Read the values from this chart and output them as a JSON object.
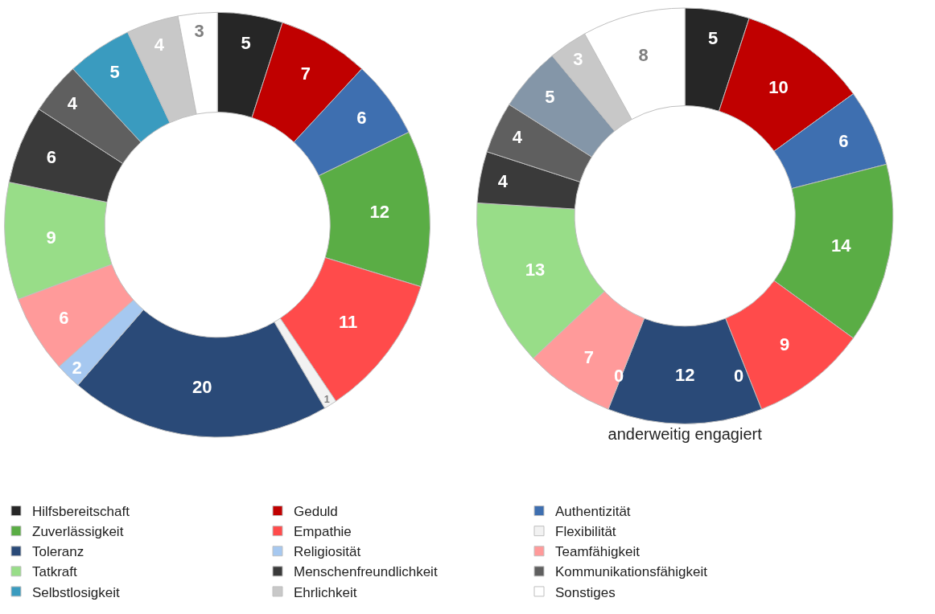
{
  "chart_data": [
    {
      "type": "donut",
      "categories": [
        "Hilfsbereitschaft",
        "Geduld",
        "Authentizität",
        "Zuverlässigkeit",
        "Empathie",
        "Flexibilität",
        "Toleranz",
        "Religiosität",
        "Teamfähigkeit",
        "Tatkraft",
        "Menschenfreundlichkeit",
        "Kommunikationsfähigkeit",
        "Selbstlosigkeit",
        "Ehrlichkeit",
        "Sonstiges"
      ],
      "values": [
        5,
        7,
        6,
        12,
        11,
        1,
        20,
        2,
        6,
        9,
        6,
        4,
        5,
        4,
        3
      ],
      "colors": [
        "#262626",
        "#c00000",
        "#3e6fb0",
        "#5aad45",
        "#ff4b4b",
        "#f2f2f2",
        "#2a4a78",
        "#a6c8f0",
        "#ff9a9a",
        "#98dd88",
        "#3a3a3a",
        "#5f5f5f",
        "#3a9bbf",
        "#c8c8c8",
        "#ffffff"
      ],
      "data_labels": true,
      "legend": "bottom"
    },
    {
      "type": "donut",
      "title": "anderweitig engagiert",
      "categories": [
        null,
        null,
        null,
        null,
        null,
        null,
        null,
        null,
        null,
        null,
        null,
        null,
        null,
        null,
        null
      ],
      "values": [
        5,
        10,
        6,
        14,
        9,
        0,
        12,
        0,
        7,
        13,
        4,
        4,
        5,
        3,
        8
      ],
      "value_labels": [
        "5",
        "10",
        "6",
        "14",
        "9",
        "0",
        "12",
        "0",
        "7",
        "13",
        "4",
        "4",
        "5",
        "3",
        "8"
      ],
      "colors": [
        "#262626",
        "#c00000",
        "#3e6fb0",
        "#5aad45",
        "#ff4b4b",
        "#f2f2f2",
        "#2a4a78",
        "#a6c8f0",
        "#ff9a9a",
        "#98dd88",
        "#3a3a3a",
        "#5f5f5f",
        "#8496a8",
        "#c8c8c8",
        "#ffffff"
      ]
    }
  ]
}
